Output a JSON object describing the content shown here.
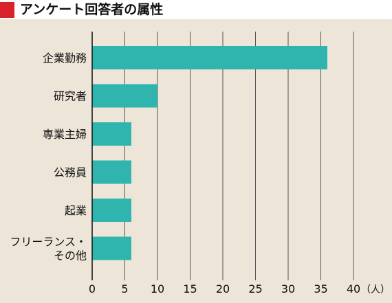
{
  "title": "アンケート回答者の属性",
  "colors": {
    "accent": "#d8232a",
    "background": "#ece5d8",
    "bar": "#2fb5ad",
    "grid": "#555555"
  },
  "chart_data": {
    "type": "bar",
    "orientation": "horizontal",
    "title": "アンケート回答者の属性",
    "categories": [
      "企業勤務",
      "研究者",
      "専業主婦",
      "公務員",
      "起業",
      "フリーランス・その他"
    ],
    "category_label_lines": [
      [
        "企業勤務"
      ],
      [
        "研究者"
      ],
      [
        "専業主婦"
      ],
      [
        "公務員"
      ],
      [
        "起業"
      ],
      [
        "フリーランス・",
        "その他"
      ]
    ],
    "values": [
      36,
      10,
      6,
      6,
      6,
      6
    ],
    "xlim": [
      0,
      40
    ],
    "xticks": [
      0,
      5,
      10,
      15,
      20,
      25,
      30,
      35,
      40
    ],
    "xunit": "（人）",
    "grid": true
  }
}
